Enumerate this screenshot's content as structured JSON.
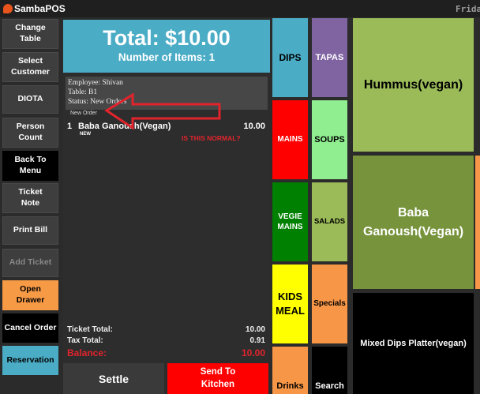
{
  "app": {
    "title": "SambaPOS",
    "clock": "Friday"
  },
  "sidebar": {
    "buttons": [
      {
        "label": "Change\nTable"
      },
      {
        "label": "Select\nCustomer"
      },
      {
        "label": "DIOTA"
      },
      {
        "label": "Person\nCount"
      },
      {
        "label": "Back To\nMenu"
      },
      {
        "label": "Ticket\nNote"
      },
      {
        "label": "Print Bill"
      },
      {
        "label": "Add Ticket"
      },
      {
        "label": "Open\nDrawer"
      },
      {
        "label": "Cancel Order"
      },
      {
        "label": "Reservation"
      }
    ]
  },
  "ticket": {
    "total": "Total: $10.00",
    "items_count": "Number of Items: 1",
    "employee": "Employee: Shivan",
    "table": "Table: B1",
    "status": "Status: New Orders",
    "order_tag": "New Order",
    "orders": [
      {
        "qty": "1",
        "name": "Baba Ganoush(Vegan)",
        "price": "10.00",
        "badge": "NEW"
      }
    ],
    "annotation": "IS THIS NORMAL?",
    "totals": {
      "ticket_total_label": "Ticket Total:",
      "ticket_total": "10.00",
      "tax_total_label": "Tax Total:",
      "tax_total": "0.91",
      "balance_label": "Balance:",
      "balance": "10.00"
    },
    "settle_label": "Settle",
    "send_label": "Send To\nKitchen"
  },
  "categories": [
    {
      "label": "DIPS",
      "color": "#4bacc6"
    },
    {
      "label": "TAPAS",
      "color": "#8064a2"
    },
    {
      "label": "MAINS",
      "color": "#ff0000"
    },
    {
      "label": "SOUPS",
      "color": "#90ee90"
    },
    {
      "label": "VEGIE\nMAINS",
      "color": "#008000"
    },
    {
      "label": "SALADS",
      "color": "#9bbb59"
    },
    {
      "label": "KIDS\nMEAL",
      "color": "#ffff00"
    },
    {
      "label": "Specials",
      "color": "#f79646"
    },
    {
      "label": "Drinks",
      "color": "#f79646"
    },
    {
      "label": "Search",
      "color": "#000000"
    }
  ],
  "products": [
    {
      "label": "Hummus(vegan)",
      "color": "#9bbb59"
    },
    {
      "label": "Baba\nGanoush(Vegan)",
      "color": "#77933c"
    },
    {
      "label": "Mixed Dips  Platter(vegan)",
      "color": "#000000"
    }
  ],
  "colors": {
    "ticket_header": "#4bacc6",
    "send_button": "#ff0000",
    "annotation": "#e1242c",
    "right_edge_strip": "#f79646"
  }
}
